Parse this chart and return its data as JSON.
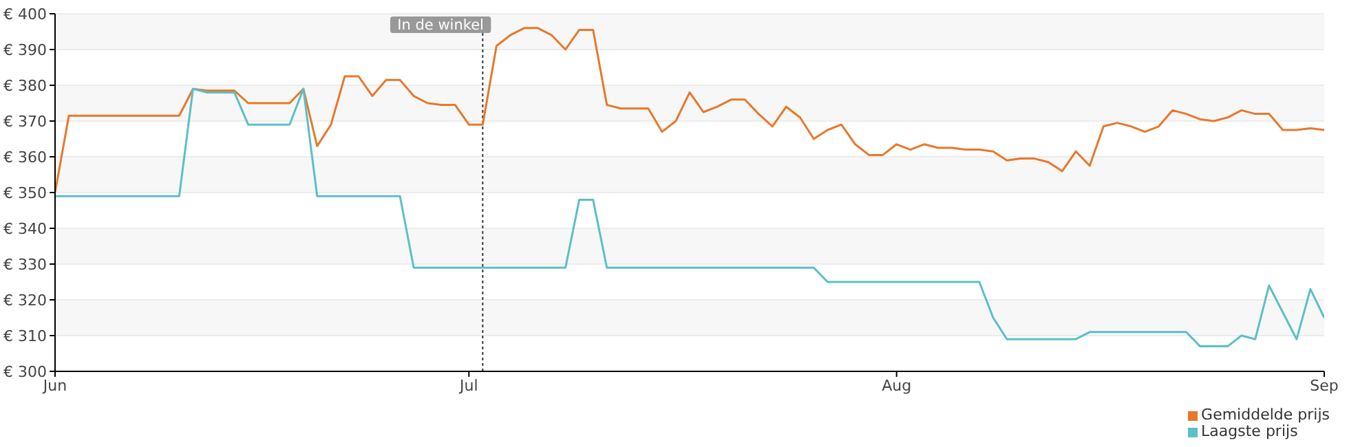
{
  "chart_data": {
    "type": "line",
    "xlim": [
      "--06-01",
      "--09-01"
    ],
    "xticks": [
      {
        "value": "--06-01",
        "label": "Jun"
      },
      {
        "value": "--07-01",
        "label": "Jul"
      },
      {
        "value": "--08-01",
        "label": "Aug"
      },
      {
        "value": "--09-01",
        "label": "Sep"
      }
    ],
    "ylim": [
      300,
      400
    ],
    "yticks": [
      {
        "value": 300,
        "label": "€ 300"
      },
      {
        "value": 310,
        "label": "€ 310"
      },
      {
        "value": 320,
        "label": "€ 320"
      },
      {
        "value": 330,
        "label": "€ 330"
      },
      {
        "value": 340,
        "label": "€ 340"
      },
      {
        "value": 350,
        "label": "€ 350"
      },
      {
        "value": 360,
        "label": "€ 360"
      },
      {
        "value": 370,
        "label": "€ 370"
      },
      {
        "value": 380,
        "label": "€ 380"
      },
      {
        "value": 390,
        "label": "€ 390"
      },
      {
        "value": 400,
        "label": "€ 400"
      }
    ],
    "grid": "y",
    "legend": "bottom right",
    "marker": "none",
    "line_style": "solid",
    "ref_lines": [
      {
        "axis": "x",
        "value": "--07-02",
        "label": "In de winkel",
        "line_style": "dotted",
        "color": "#333333"
      }
    ],
    "series": [
      {
        "name": "Gemiddelde prijs",
        "color": "#e8782a",
        "x": [
          "--06-01",
          "--06-02",
          "--06-10",
          "--06-11",
          "--06-12",
          "--06-14",
          "--06-15",
          "--06-18",
          "--06-19",
          "--06-20",
          "--06-21",
          "--06-22",
          "--06-23",
          "--06-24",
          "--06-25",
          "--06-26",
          "--06-27",
          "--06-28",
          "--06-29",
          "--06-30",
          "--07-01",
          "--07-02",
          "--07-03",
          "--07-04",
          "--07-05",
          "--07-06",
          "--07-07",
          "--07-08",
          "--07-09",
          "--07-10",
          "--07-11",
          "--07-12",
          "--07-14",
          "--07-15",
          "--07-16",
          "--07-17",
          "--07-18",
          "--07-19",
          "--07-20",
          "--07-21",
          "--07-22",
          "--07-23",
          "--07-24",
          "--07-25",
          "--07-26",
          "--07-27",
          "--07-28",
          "--07-29",
          "--07-30",
          "--07-31",
          "--08-01",
          "--08-02",
          "--08-03",
          "--08-04",
          "--08-05",
          "--08-06",
          "--08-07",
          "--08-08",
          "--08-09",
          "--08-10",
          "--08-11",
          "--08-12",
          "--08-13",
          "--08-14",
          "--08-15",
          "--08-16",
          "--08-17",
          "--08-18",
          "--08-19",
          "--08-20",
          "--08-21",
          "--08-22",
          "--08-23",
          "--08-24",
          "--08-25",
          "--08-26",
          "--08-27",
          "--08-28",
          "--08-29",
          "--08-30",
          "--08-31",
          "--09-01"
        ],
        "values": [
          350,
          371.5,
          371.5,
          379,
          378.5,
          378.5,
          375,
          375,
          379,
          363,
          369,
          382.5,
          382.5,
          377,
          381.5,
          381.5,
          377,
          375,
          374.5,
          374.5,
          369,
          369,
          391,
          394,
          396,
          396,
          394,
          390,
          395.5,
          395.5,
          374.5,
          373.5,
          373.5,
          367,
          370,
          378,
          372.5,
          374,
          376,
          376,
          372,
          368.5,
          374,
          371,
          365,
          367.5,
          369,
          363.5,
          360.5,
          360.5,
          363.5,
          362,
          363.5,
          362.5,
          362.5,
          362,
          362,
          361.5,
          359,
          359.5,
          359.5,
          358.5,
          356,
          361.5,
          357.5,
          368.5,
          369.5,
          368.5,
          367,
          368.5,
          373,
          372,
          370.5,
          370,
          371,
          373,
          372,
          372,
          367.5,
          367.5,
          368,
          367.5
        ]
      },
      {
        "name": "Laagste prijs",
        "color": "#5bbfc8",
        "x": [
          "--06-01",
          "--06-10",
          "--06-11",
          "--06-12",
          "--06-14",
          "--06-15",
          "--06-18",
          "--06-19",
          "--06-20",
          "--06-26",
          "--06-27",
          "--07-08",
          "--07-09",
          "--07-10",
          "--07-11",
          "--07-26",
          "--07-27",
          "--08-07",
          "--08-08",
          "--08-09",
          "--08-14",
          "--08-15",
          "--08-22",
          "--08-23",
          "--08-25",
          "--08-26",
          "--08-27",
          "--08-28",
          "--08-29",
          "--08-30",
          "--08-31",
          "--09-01"
        ],
        "values": [
          349,
          349,
          379,
          378,
          378,
          369,
          369,
          379,
          349,
          349,
          329,
          329,
          348,
          348,
          329,
          329,
          325,
          325,
          315,
          309,
          309,
          311,
          311,
          307,
          307,
          310,
          309,
          324,
          316.5,
          309,
          323,
          315
        ]
      }
    ]
  }
}
